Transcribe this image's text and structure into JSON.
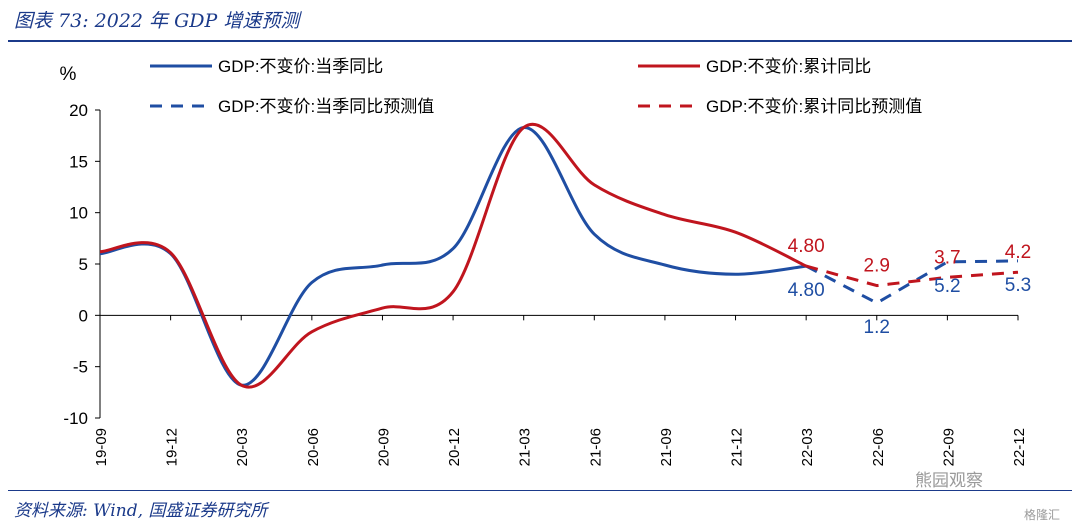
{
  "header": {
    "title": "图表 73:  2022 年 GDP 增速预测"
  },
  "footer": {
    "source": "资料来源:  Wind,  国盛证券研究所"
  },
  "watermarks": {
    "wechat": "熊园观察",
    "site": "格隆汇"
  },
  "colors": {
    "blue": "#1f4ea3",
    "red": "#c0151e",
    "title": "#1b3a8a"
  },
  "chart_data": {
    "type": "line",
    "ylabel": "%",
    "ylim": [
      -10,
      20
    ],
    "yticks": [
      -10,
      -5,
      0,
      5,
      10,
      15,
      20
    ],
    "xtick_labels": [
      "19-09",
      "19-12",
      "20-03",
      "20-06",
      "20-09",
      "20-12",
      "21-03",
      "21-06",
      "21-09",
      "21-12",
      "22-03",
      "22-06",
      "22-09",
      "22-12"
    ],
    "legend": [
      "GDP:不变价:当季同比",
      "GDP:不变价:累计同比",
      "GDP:不变价:当季同比预测值",
      "GDP:不变价:累计同比预测值"
    ],
    "legend_position": "top",
    "grid": false,
    "series": [
      {
        "name": "GDP:不变价:当季同比",
        "color": "#1f4ea3",
        "dash": false,
        "x": [
          "19-09",
          "19-12",
          "20-03",
          "20-06",
          "20-09",
          "20-12",
          "21-03",
          "21-06",
          "21-09",
          "21-12",
          "22-03"
        ],
        "values": [
          6.0,
          6.0,
          -6.8,
          3.2,
          4.9,
          6.5,
          18.3,
          7.9,
          4.9,
          4.0,
          4.8
        ]
      },
      {
        "name": "GDP:不变价:累计同比",
        "color": "#c0151e",
        "dash": false,
        "x": [
          "19-09",
          "19-12",
          "20-03",
          "20-06",
          "20-09",
          "20-12",
          "21-03",
          "21-06",
          "21-09",
          "21-12",
          "22-03"
        ],
        "values": [
          6.2,
          6.1,
          -6.8,
          -1.6,
          0.7,
          2.3,
          18.3,
          12.7,
          9.8,
          8.1,
          4.8
        ]
      },
      {
        "name": "GDP:不变价:当季同比预测值",
        "color": "#1f4ea3",
        "dash": true,
        "x": [
          "22-03",
          "22-06",
          "22-09",
          "22-12"
        ],
        "values": [
          4.8,
          1.2,
          5.2,
          5.3
        ]
      },
      {
        "name": "GDP:不变价:累计同比预测值",
        "color": "#c0151e",
        "dash": true,
        "x": [
          "22-03",
          "22-06",
          "22-09",
          "22-12"
        ],
        "values": [
          4.8,
          2.9,
          3.7,
          4.2
        ]
      }
    ],
    "annotations": [
      {
        "text": "4.80",
        "x": "22-03",
        "value": 4.8,
        "color": "#c0151e",
        "side": "above"
      },
      {
        "text": "4.80",
        "x": "22-03",
        "value": 4.8,
        "color": "#1f4ea3",
        "side": "below"
      },
      {
        "text": "2.9",
        "x": "22-06",
        "value": 2.9,
        "color": "#c0151e",
        "side": "above"
      },
      {
        "text": "1.2",
        "x": "22-06",
        "value": 1.2,
        "color": "#1f4ea3",
        "side": "below"
      },
      {
        "text": "3.7",
        "x": "22-09",
        "value": 3.7,
        "color": "#c0151e",
        "side": "above"
      },
      {
        "text": "5.2",
        "x": "22-09",
        "value": 5.2,
        "color": "#1f4ea3",
        "side": "below"
      },
      {
        "text": "4.2",
        "x": "22-12",
        "value": 4.2,
        "color": "#c0151e",
        "side": "above"
      },
      {
        "text": "5.3",
        "x": "22-12",
        "value": 5.3,
        "color": "#1f4ea3",
        "side": "below"
      }
    ]
  }
}
